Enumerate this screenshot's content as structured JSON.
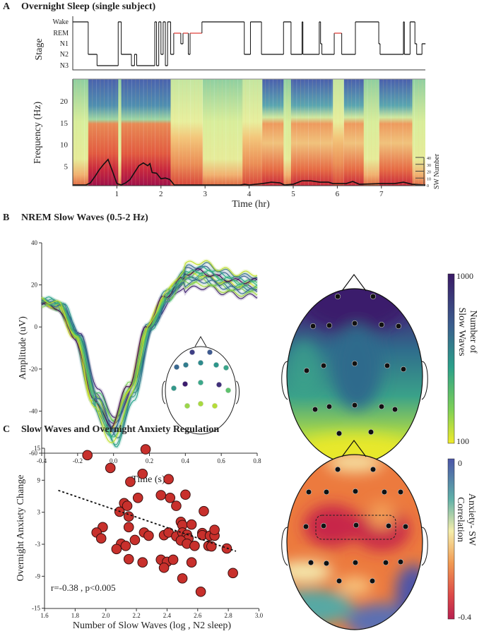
{
  "panels": {
    "a": {
      "letter": "A",
      "title": "Overnight Sleep (single subject)"
    },
    "b": {
      "letter": "B",
      "title": "NREM Slow Waves  (0.5-2 Hz)"
    },
    "c": {
      "letter": "C",
      "title": "Slow Waves and Overnight Anxiety Regulation"
    }
  },
  "colors": {
    "rem": "#e0403a",
    "scatter_fill": "#c8302c",
    "scatter_edge": "#3a1010"
  },
  "chart_data": [
    {
      "id": "hypnogram",
      "type": "line",
      "step": true,
      "ylabel": "Stage",
      "stages": [
        "Wake",
        "REM",
        "N1",
        "N2",
        "N3"
      ],
      "segments": [
        [
          0,
          "Wake"
        ],
        [
          0.35,
          "N2"
        ],
        [
          0.55,
          "N3"
        ],
        [
          1.03,
          "Wake"
        ],
        [
          1.1,
          "N2"
        ],
        [
          1.33,
          "N3"
        ],
        [
          1.4,
          "N2"
        ],
        [
          1.45,
          "N3"
        ],
        [
          1.86,
          "Wake"
        ],
        [
          1.9,
          "N3"
        ],
        [
          1.95,
          "Wake"
        ],
        [
          2.0,
          "N2"
        ],
        [
          2.05,
          "Wake"
        ],
        [
          2.1,
          "N3"
        ],
        [
          2.15,
          "Wake"
        ],
        [
          2.22,
          "N2"
        ],
        [
          2.29,
          "REM"
        ],
        [
          2.45,
          "N1"
        ],
        [
          2.5,
          "REM"
        ],
        [
          2.62,
          "N2"
        ],
        [
          2.66,
          "REM"
        ],
        [
          2.93,
          "Wake"
        ],
        [
          3.89,
          "N2"
        ],
        [
          4.03,
          "Wake"
        ],
        [
          4.28,
          "N2"
        ],
        [
          4.78,
          "Wake"
        ],
        [
          4.95,
          "N2"
        ],
        [
          5.2,
          "Wake"
        ],
        [
          5.22,
          "N2"
        ],
        [
          5.59,
          "Wake"
        ],
        [
          5.62,
          "N1"
        ],
        [
          5.65,
          "N2"
        ],
        [
          5.93,
          "REM"
        ],
        [
          6.1,
          "N2"
        ],
        [
          6.41,
          "Wake"
        ],
        [
          6.94,
          "N1"
        ],
        [
          6.97,
          "N2"
        ],
        [
          7.5,
          "Wake"
        ],
        [
          7.52,
          "N2"
        ],
        [
          7.65,
          "Wake"
        ],
        [
          7.76,
          "N1"
        ],
        [
          7.8,
          "N2"
        ],
        [
          7.92,
          "N1"
        ],
        [
          8.0,
          "N1"
        ]
      ]
    },
    {
      "id": "spectrogram",
      "type": "heatmap",
      "xlabel": "Time (hr)",
      "ylabel": "Frequency (Hz)",
      "xticks": [
        1,
        2,
        3,
        4,
        5,
        6,
        7
      ],
      "yticks": [
        5,
        10,
        15,
        20
      ],
      "xlim": [
        0,
        8
      ],
      "ylim": [
        0,
        25
      ]
    },
    {
      "id": "sw-number",
      "type": "line",
      "ylabel": "SW Number",
      "yticks": [
        0,
        10,
        20,
        30,
        40
      ],
      "ylim": [
        0,
        40
      ],
      "x": [
        0,
        0.3,
        0.4,
        0.5,
        0.6,
        0.7,
        0.8,
        0.9,
        1.0,
        1.1,
        1.2,
        1.3,
        1.4,
        1.5,
        1.6,
        1.7,
        1.75,
        1.8,
        1.9,
        2.0,
        2.1,
        2.2,
        2.3,
        3.8,
        3.9,
        4.0,
        4.3,
        4.5,
        4.7,
        4.8,
        5.0,
        5.2,
        5.4,
        5.6,
        5.8,
        5.9,
        6.2,
        6.35,
        6.5,
        7.0,
        7.3,
        7.5,
        7.7,
        8.0
      ],
      "y": [
        0,
        0,
        3,
        12,
        22,
        30,
        37,
        20,
        2,
        0,
        3,
        8,
        18,
        28,
        32,
        28,
        31,
        18,
        17,
        9,
        10,
        8,
        0,
        0,
        1,
        0,
        2,
        4,
        3,
        0,
        1,
        6,
        6,
        4,
        4,
        2,
        2,
        5,
        1,
        2,
        2,
        4,
        1,
        0
      ]
    },
    {
      "id": "slow-wave-erp",
      "type": "line",
      "xlabel": "Time (s)",
      "ylabel": "Amplitude (uV)",
      "xlim": [
        -0.4,
        0.8
      ],
      "ylim": [
        -60,
        40
      ],
      "xticks": [
        "-0.4",
        "-0.2",
        "0.0",
        "0.2",
        "0.4",
        "0.6",
        "0.8"
      ],
      "yticks": [
        "-60",
        "-40",
        "-20",
        "0",
        "20",
        "40"
      ],
      "x": [
        -0.4,
        -0.3,
        -0.2,
        -0.1,
        0.0,
        0.1,
        0.2,
        0.3,
        0.4,
        0.5,
        0.6,
        0.7,
        0.8
      ],
      "mean": [
        12,
        10,
        -5,
        -35,
        -50,
        -30,
        0,
        15,
        24,
        25,
        22,
        20,
        20
      ],
      "channels": 15
    },
    {
      "id": "topomap-sw-count",
      "type": "heatmap",
      "colorbar_label": "Number of Slow Waves",
      "colorbar_ticks": [
        "1000",
        "100"
      ],
      "scale": "log",
      "pattern": "high frontal, low occipital"
    },
    {
      "id": "anxiety-scatter",
      "type": "scatter",
      "xlabel": "Number of Slow Waves (log , N2 sleep)",
      "ylabel": "Overnight Anxiety Change",
      "xlim": [
        1.6,
        3.0
      ],
      "ylim": [
        -15,
        15
      ],
      "xticks": [
        "1.6",
        "1.8",
        "2.0",
        "2.2",
        "2.4",
        "2.6",
        "2.8",
        "3.0"
      ],
      "yticks": [
        "15",
        "9",
        "3",
        "-3",
        "-9",
        "-15"
      ],
      "annotation": "r=-0.38 , p<0.005",
      "trend": {
        "x": [
          1.69,
          2.85
        ],
        "y": [
          7.1,
          -4.3
        ]
      },
      "points": [
        [
          1.88,
          13.7
        ],
        [
          2.03,
          11.3
        ],
        [
          2.26,
          14.8
        ],
        [
          2.24,
          10.2
        ],
        [
          2.16,
          8.7
        ],
        [
          2.41,
          9.2
        ],
        [
          2.21,
          5.7
        ],
        [
          2.36,
          6.2
        ],
        [
          2.42,
          5.7
        ],
        [
          2.52,
          6.3
        ],
        [
          2.12,
          4.7
        ],
        [
          2.14,
          4.2
        ],
        [
          2.46,
          4.2
        ],
        [
          2.09,
          3.1
        ],
        [
          2.64,
          3.2
        ],
        [
          2.15,
          2.2
        ],
        [
          2.49,
          1.2
        ],
        [
          2.5,
          0.6
        ],
        [
          2.56,
          0.7
        ],
        [
          1.98,
          0.2
        ],
        [
          2.15,
          0.2
        ],
        [
          1.94,
          -0.8
        ],
        [
          1.97,
          -1.9
        ],
        [
          2.25,
          -0.8
        ],
        [
          2.28,
          -1.4
        ],
        [
          2.38,
          -1.3
        ],
        [
          2.41,
          -0.8
        ],
        [
          2.46,
          -1.5
        ],
        [
          2.5,
          -0.8
        ],
        [
          2.53,
          -1.2
        ],
        [
          2.54,
          -1.9
        ],
        [
          2.49,
          -2.3
        ],
        [
          2.53,
          -2.9
        ],
        [
          2.58,
          -3.3
        ],
        [
          2.63,
          -0.9
        ],
        [
          2.63,
          -1.3
        ],
        [
          2.68,
          -1.4
        ],
        [
          2.71,
          -1.4
        ],
        [
          2.71,
          -0.3
        ],
        [
          2.67,
          -3.3
        ],
        [
          2.69,
          -3.4
        ],
        [
          2.79,
          -3.8
        ],
        [
          2.19,
          -2.2
        ],
        [
          2.1,
          -2.9
        ],
        [
          2.13,
          -3.3
        ],
        [
          2.07,
          -3.9
        ],
        [
          2.15,
          -5.8
        ],
        [
          2.24,
          -6.4
        ],
        [
          2.36,
          -5.9
        ],
        [
          2.4,
          -6.3
        ],
        [
          2.44,
          -5.9
        ],
        [
          2.38,
          -7.4
        ],
        [
          2.56,
          -6.4
        ],
        [
          2.83,
          -8.4
        ],
        [
          2.5,
          -9.4
        ],
        [
          2.62,
          -11.9
        ]
      ]
    },
    {
      "id": "topomap-correlation",
      "type": "heatmap",
      "colorbar_label": "Anxiety- SW Correlation",
      "colorbar_ticks": [
        "0",
        "-0.4"
      ],
      "pattern": "strongest negative correlation over central electrodes (dashed cluster)"
    }
  ]
}
